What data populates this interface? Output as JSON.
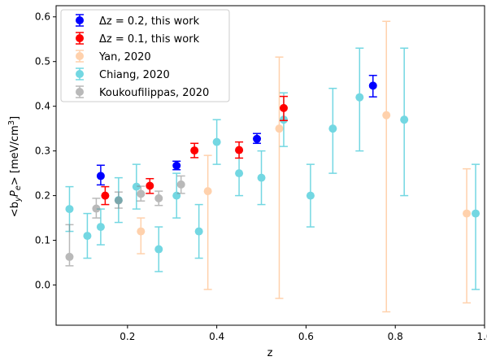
{
  "chart_data": {
    "type": "scatter",
    "xlabel": "z",
    "ylabel_parts": {
      "pre": "<b",
      "sub1": "y",
      "mid": "P",
      "sub2": "e",
      "post": "> [meV/cm",
      "sup": "3",
      "end": "]"
    },
    "xlim": [
      0.04,
      1.0
    ],
    "ylim": [
      -0.09,
      0.625
    ],
    "xticks": [
      0.2,
      0.4,
      0.6,
      0.8,
      1.0
    ],
    "xtick_labels": [
      "0.2",
      "0.4",
      "0.6",
      "0.8",
      "1.0"
    ],
    "yticks": [
      0.0,
      0.1,
      0.2,
      0.3,
      0.4,
      0.5,
      0.6
    ],
    "ytick_labels": [
      "0.0",
      "0.1",
      "0.2",
      "0.3",
      "0.4",
      "0.5",
      "0.6"
    ],
    "grid": false,
    "legend_position": "top-left",
    "series": [
      {
        "name": "Δz = 0.2, this work",
        "color": "#0000ff",
        "alpha": 1.0,
        "points": [
          {
            "x": 0.14,
            "y": 0.244,
            "lo": 0.224,
            "hi": 0.268
          },
          {
            "x": 0.31,
            "y": 0.267,
            "lo": 0.258,
            "hi": 0.277
          },
          {
            "x": 0.49,
            "y": 0.327,
            "lo": 0.317,
            "hi": 0.339
          },
          {
            "x": 0.75,
            "y": 0.446,
            "lo": 0.421,
            "hi": 0.469
          }
        ]
      },
      {
        "name": "Δz = 0.1, this work",
        "color": "#ff0000",
        "alpha": 1.0,
        "points": [
          {
            "x": 0.15,
            "y": 0.2,
            "lo": 0.18,
            "hi": 0.22
          },
          {
            "x": 0.25,
            "y": 0.222,
            "lo": 0.205,
            "hi": 0.238
          },
          {
            "x": 0.35,
            "y": 0.301,
            "lo": 0.285,
            "hi": 0.317
          },
          {
            "x": 0.45,
            "y": 0.302,
            "lo": 0.284,
            "hi": 0.32
          },
          {
            "x": 0.55,
            "y": 0.396,
            "lo": 0.368,
            "hi": 0.422
          }
        ]
      },
      {
        "name": "Yan, 2020",
        "color": "#ffa55c",
        "alpha": 0.5,
        "points": [
          {
            "x": 0.23,
            "y": 0.12,
            "lo": 0.07,
            "hi": 0.15
          },
          {
            "x": 0.38,
            "y": 0.21,
            "lo": -0.01,
            "hi": 0.29
          },
          {
            "x": 0.54,
            "y": 0.35,
            "lo": -0.03,
            "hi": 0.51
          },
          {
            "x": 0.78,
            "y": 0.38,
            "lo": -0.06,
            "hi": 0.59
          },
          {
            "x": 0.96,
            "y": 0.16,
            "lo": -0.04,
            "hi": 0.26
          }
        ]
      },
      {
        "name": "Chiang, 2020",
        "color": "#17becf",
        "alpha": 0.6,
        "points": [
          {
            "x": 0.07,
            "y": 0.17,
            "lo": 0.12,
            "hi": 0.22
          },
          {
            "x": 0.11,
            "y": 0.11,
            "lo": 0.06,
            "hi": 0.16
          },
          {
            "x": 0.14,
            "y": 0.13,
            "lo": 0.09,
            "hi": 0.17
          },
          {
            "x": 0.18,
            "y": 0.19,
            "lo": 0.14,
            "hi": 0.24
          },
          {
            "x": 0.22,
            "y": 0.22,
            "lo": 0.17,
            "hi": 0.27
          },
          {
            "x": 0.27,
            "y": 0.08,
            "lo": 0.03,
            "hi": 0.13
          },
          {
            "x": 0.31,
            "y": 0.2,
            "lo": 0.15,
            "hi": 0.25
          },
          {
            "x": 0.36,
            "y": 0.12,
            "lo": 0.06,
            "hi": 0.18
          },
          {
            "x": 0.4,
            "y": 0.32,
            "lo": 0.27,
            "hi": 0.37
          },
          {
            "x": 0.45,
            "y": 0.25,
            "lo": 0.2,
            "hi": 0.3
          },
          {
            "x": 0.5,
            "y": 0.24,
            "lo": 0.18,
            "hi": 0.3
          },
          {
            "x": 0.55,
            "y": 0.37,
            "lo": 0.31,
            "hi": 0.43
          },
          {
            "x": 0.61,
            "y": 0.2,
            "lo": 0.13,
            "hi": 0.27
          },
          {
            "x": 0.66,
            "y": 0.35,
            "lo": 0.25,
            "hi": 0.44
          },
          {
            "x": 0.72,
            "y": 0.42,
            "lo": 0.3,
            "hi": 0.53
          },
          {
            "x": 0.82,
            "y": 0.37,
            "lo": 0.2,
            "hi": 0.53
          },
          {
            "x": 0.98,
            "y": 0.16,
            "lo": -0.01,
            "hi": 0.27
          }
        ]
      },
      {
        "name": "Koukoufilippas, 2020",
        "color": "#808080",
        "alpha": 0.55,
        "points": [
          {
            "x": 0.07,
            "y": 0.063,
            "lo": 0.043,
            "hi": 0.135
          },
          {
            "x": 0.13,
            "y": 0.171,
            "lo": 0.15,
            "hi": 0.194
          },
          {
            "x": 0.18,
            "y": 0.189,
            "lo": 0.172,
            "hi": 0.208
          },
          {
            "x": 0.23,
            "y": 0.204,
            "lo": 0.188,
            "hi": 0.221
          },
          {
            "x": 0.27,
            "y": 0.194,
            "lo": 0.178,
            "hi": 0.21
          },
          {
            "x": 0.32,
            "y": 0.225,
            "lo": 0.205,
            "hi": 0.244
          }
        ]
      }
    ]
  }
}
